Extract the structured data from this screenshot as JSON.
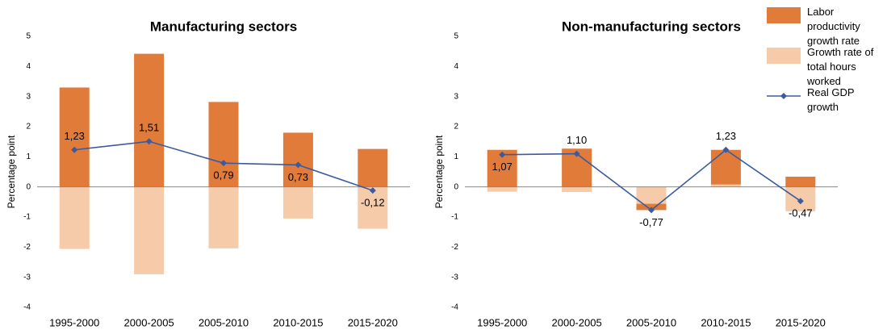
{
  "chart_data": [
    {
      "type": "bar",
      "title": "Manufacturing sectors",
      "y_label": "Percentage point",
      "stacked": true,
      "categories": [
        "1995-2000",
        "2000-2005",
        "2005-2010",
        "2010-2015",
        "2015-2020"
      ],
      "ylim": [
        -4,
        5
      ],
      "yticks": [
        -4,
        -3,
        -2,
        -1,
        0,
        1,
        2,
        3,
        4,
        5
      ],
      "series": [
        {
          "name": "Labor productivity growth rate",
          "color": "#e07b39",
          "values": [
            3.3,
            4.42,
            2.82,
            1.8,
            1.26
          ]
        },
        {
          "name": "Growth rate of total hours worked",
          "color": "#f5cba9",
          "values": [
            -2.06,
            -2.9,
            -2.04,
            -1.05,
            -1.39
          ]
        },
        {
          "name": "Real GDP growth",
          "type": "line",
          "color": "#3b5b9e",
          "values": [
            1.23,
            1.51,
            0.79,
            0.73,
            -0.12
          ],
          "value_labels": [
            "1,23",
            "1,51",
            "0,79",
            "0,73",
            "-0,12"
          ]
        }
      ]
    },
    {
      "type": "bar",
      "title": "Non-manufacturing sectors",
      "y_label": "Percentage point",
      "stacked": true,
      "categories": [
        "1995-2000",
        "2000-2005",
        "2005-2010",
        "2010-2015",
        "2015-2020"
      ],
      "ylim": [
        -4,
        5
      ],
      "yticks": [
        -4,
        -3,
        -2,
        -1,
        0,
        1,
        2,
        3,
        4,
        5
      ],
      "series": [
        {
          "name": "Labor productivity growth rate",
          "color": "#e07b39",
          "values": [
            1.23,
            1.27,
            -0.21,
            1.15,
            0.34
          ]
        },
        {
          "name": "Growth rate of total hours worked",
          "color": "#f5cba9",
          "values": [
            -0.16,
            -0.17,
            -0.56,
            0.08,
            -0.81
          ]
        },
        {
          "name": "Real GDP growth",
          "type": "line",
          "color": "#3b5b9e",
          "values": [
            1.07,
            1.1,
            -0.77,
            1.23,
            -0.47
          ],
          "value_labels": [
            "1,07",
            "1,10",
            "-0,77",
            "1,23",
            "-0,47"
          ]
        }
      ]
    }
  ]
}
